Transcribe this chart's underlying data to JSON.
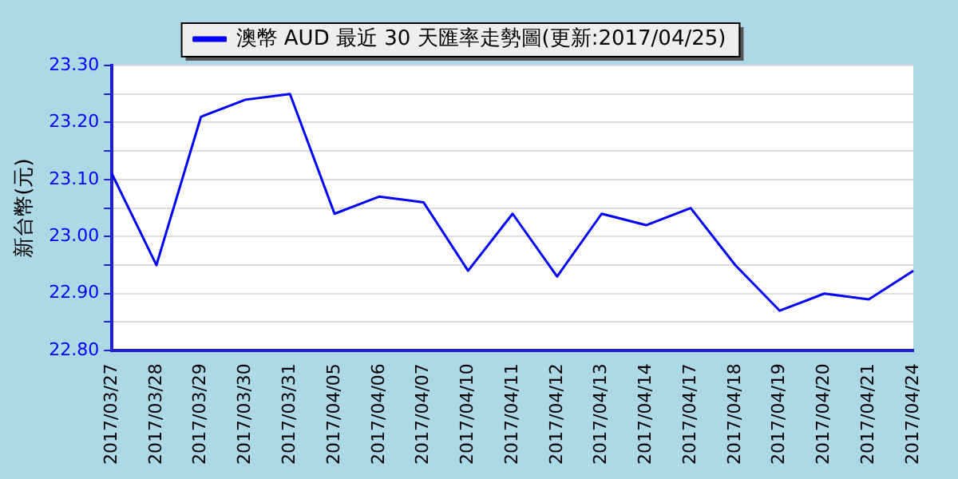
{
  "chart_data": {
    "type": "line",
    "ylabel": "新台幣(元)",
    "legend": "top",
    "categories": [
      "2017/03/27",
      "2017/03/28",
      "2017/03/29",
      "2017/03/30",
      "2017/03/31",
      "2017/04/05",
      "2017/04/06",
      "2017/04/07",
      "2017/04/10",
      "2017/04/11",
      "2017/04/12",
      "2017/04/13",
      "2017/04/14",
      "2017/04/17",
      "2017/04/18",
      "2017/04/19",
      "2017/04/20",
      "2017/04/21",
      "2017/04/24"
    ],
    "series": [
      {
        "name": "澳幣 AUD 最近 30 天匯率走勢圖(更新:2017/04/25)",
        "color": "#0000ff",
        "values": [
          23.11,
          22.95,
          23.21,
          23.24,
          23.25,
          23.04,
          23.07,
          23.06,
          22.94,
          23.04,
          22.93,
          23.04,
          23.02,
          23.05,
          22.95,
          22.87,
          22.9,
          22.89,
          22.94
        ]
      }
    ],
    "ylim": [
      22.8,
      23.3
    ],
    "yticks": [
      {
        "value": 22.8,
        "label": "22.80"
      },
      {
        "value": 22.85,
        "label": null
      },
      {
        "value": 22.9,
        "label": "22.90"
      },
      {
        "value": 22.95,
        "label": null
      },
      {
        "value": 23.0,
        "label": "23.00"
      },
      {
        "value": 23.05,
        "label": null
      },
      {
        "value": 23.1,
        "label": "23.10"
      },
      {
        "value": 23.15,
        "label": null
      },
      {
        "value": 23.2,
        "label": "23.20"
      },
      {
        "value": 23.25,
        "label": null
      },
      {
        "value": 23.3,
        "label": "23.30"
      }
    ],
    "grid": "y",
    "marker": "none",
    "line_style": "solid"
  }
}
